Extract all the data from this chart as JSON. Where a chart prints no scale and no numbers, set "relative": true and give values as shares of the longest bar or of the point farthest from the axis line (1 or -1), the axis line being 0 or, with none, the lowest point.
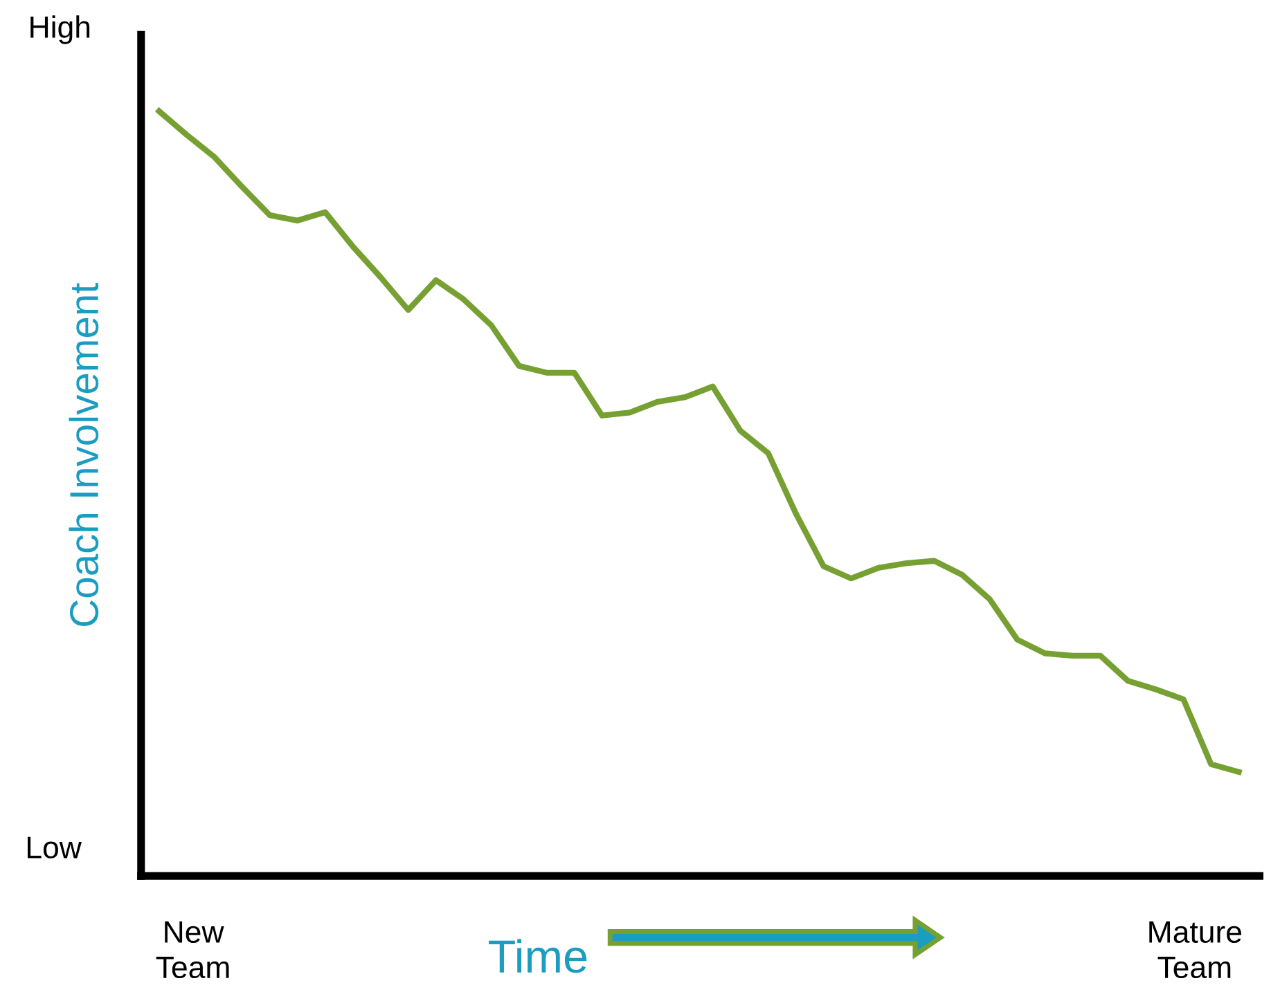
{
  "chart_data": {
    "type": "line",
    "relative": true,
    "ylabel": "Coach Involvement",
    "xlabel": "Time",
    "annotations": [
      "High",
      "Low",
      "New\nTeam",
      "Mature\nTeam"
    ],
    "legend": false,
    "marker": "none",
    "line_style": "solid",
    "categories": [
      null,
      null,
      null,
      null,
      null,
      null,
      null,
      null,
      null,
      null,
      null,
      null,
      null,
      null,
      null,
      null,
      null,
      null,
      null,
      null,
      null,
      null,
      null,
      null,
      null,
      null,
      null,
      null,
      null,
      null,
      null,
      null,
      null,
      null,
      null,
      null,
      null,
      null,
      null,
      null
    ],
    "series": [
      {
        "color": "#77a033",
        "values": [
          1.0,
          0.969,
          0.94,
          0.901,
          0.864,
          0.857,
          0.868,
          0.823,
          0.783,
          0.74,
          0.779,
          0.754,
          0.72,
          0.667,
          0.658,
          0.658,
          0.602,
          0.606,
          0.62,
          0.626,
          0.64,
          0.582,
          0.553,
          0.474,
          0.405,
          0.389,
          0.403,
          0.409,
          0.412,
          0.394,
          0.362,
          0.309,
          0.291,
          0.288,
          0.288,
          0.255,
          0.244,
          0.231,
          0.146,
          0.136
        ]
      }
    ]
  }
}
